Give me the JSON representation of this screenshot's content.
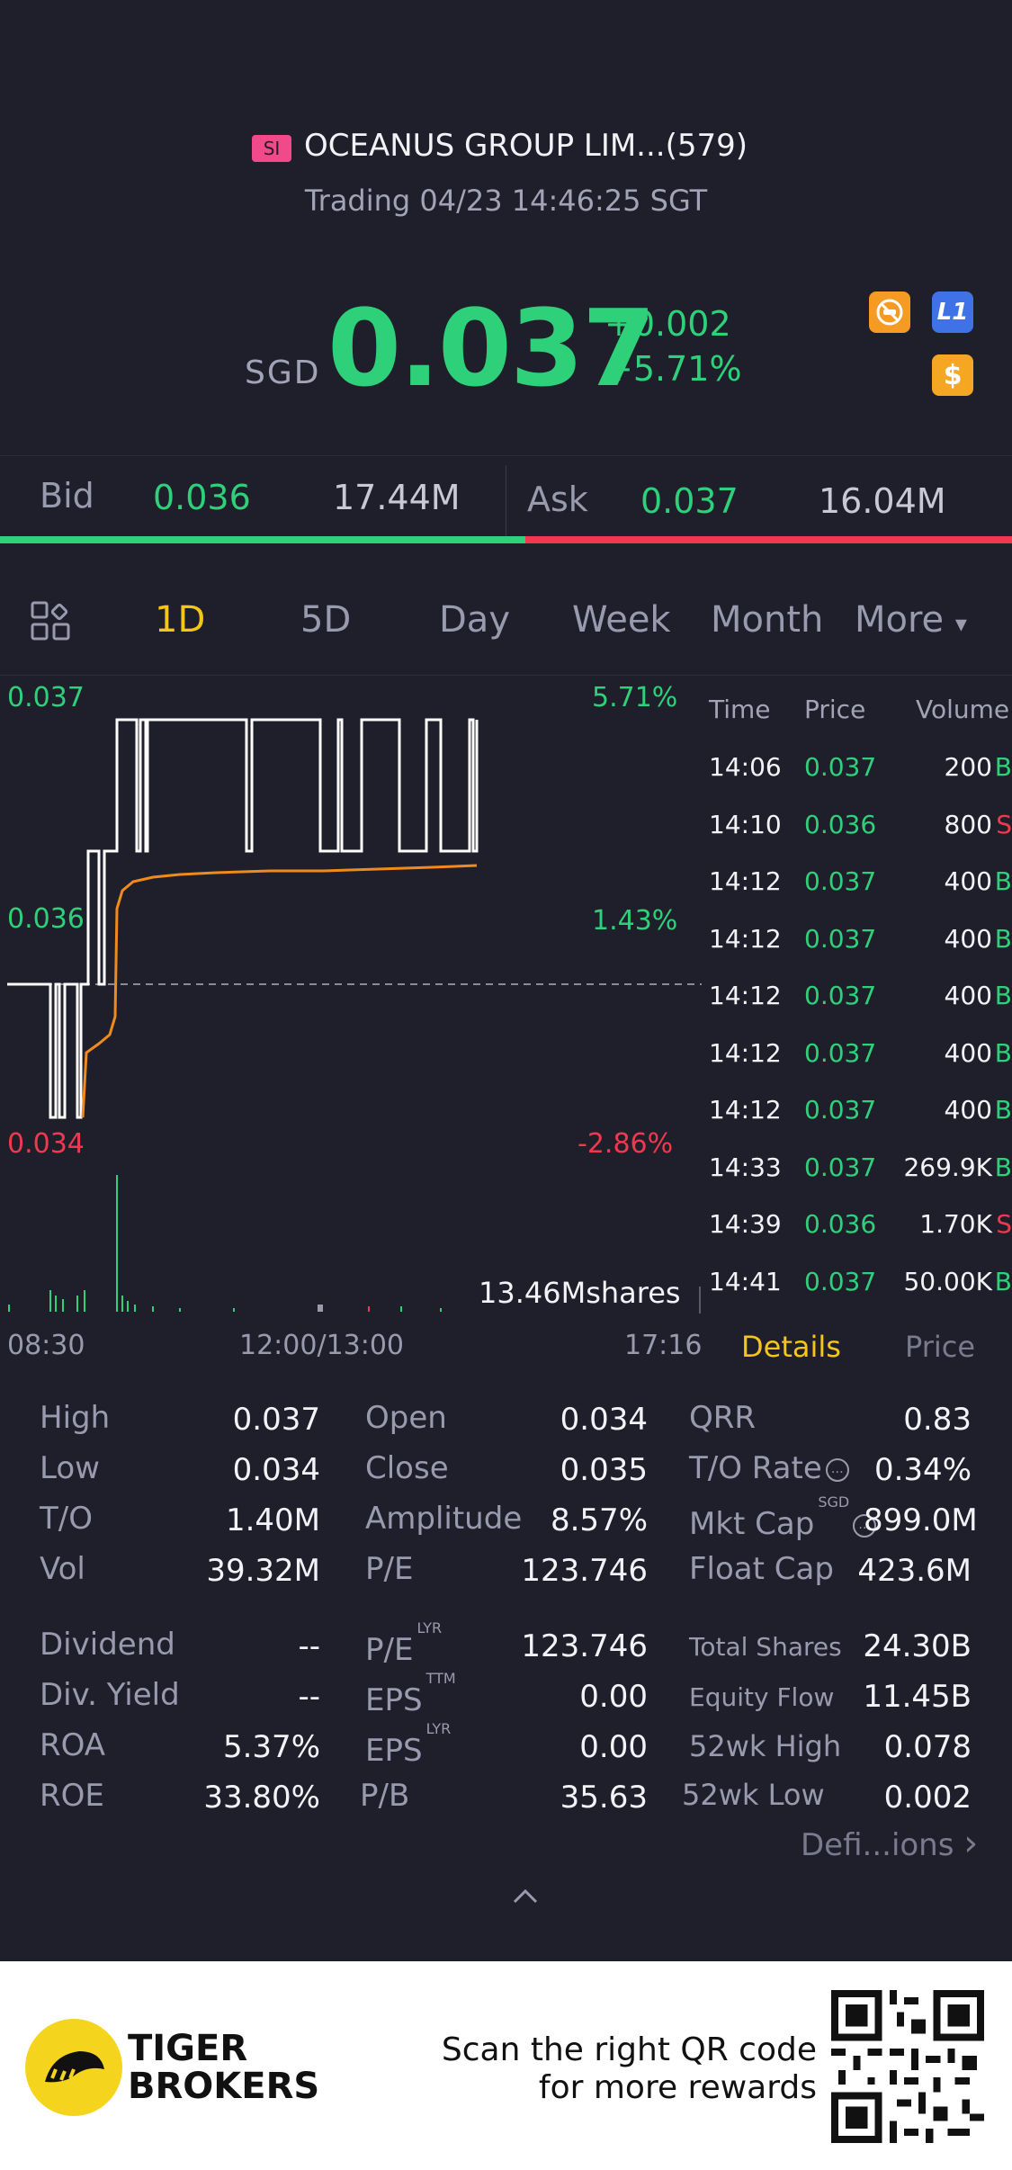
{
  "header": {
    "market_badge": "SI",
    "stock_name": "OCEANUS GROUP LIM...(579)",
    "trading_status": "Trading 04/23 14:46:25 SGT",
    "currency": "SGD",
    "price": "0.037",
    "change": "+0.002",
    "change_pct": "+5.71%",
    "icons": [
      "no-short-icon",
      "level1-icon",
      "dollar-icon"
    ],
    "icon_glyphs": {
      "level1": "L1",
      "dollar": "$"
    }
  },
  "bid_ask": {
    "bid_label": "Bid",
    "bid_price": "0.036",
    "bid_size": "17.44M",
    "ask_label": "Ask",
    "ask_price": "0.037",
    "ask_size": "16.04M"
  },
  "tabs": {
    "items": [
      "1D",
      "5D",
      "Day",
      "Week",
      "Month",
      "More"
    ],
    "active": "1D",
    "more_caret": "▾"
  },
  "chart": {
    "y_high": "0.037",
    "y_mid": "0.036",
    "y_low": "0.034",
    "pct_high": "5.71%",
    "pct_mid": "1.43%",
    "pct_low": "-2.86%",
    "volume_label": "13.46Mshares",
    "x_labels": [
      "08:30",
      "12:00/13:00",
      "17:16"
    ]
  },
  "trades": {
    "headers": [
      "Time",
      "Price",
      "Volume"
    ],
    "rows": [
      {
        "time": "14:06",
        "price": "0.037",
        "volume": "200",
        "side": "B"
      },
      {
        "time": "14:10",
        "price": "0.036",
        "volume": "800",
        "side": "S"
      },
      {
        "time": "14:12",
        "price": "0.037",
        "volume": "400",
        "side": "B"
      },
      {
        "time": "14:12",
        "price": "0.037",
        "volume": "400",
        "side": "B"
      },
      {
        "time": "14:12",
        "price": "0.037",
        "volume": "400",
        "side": "B"
      },
      {
        "time": "14:12",
        "price": "0.037",
        "volume": "400",
        "side": "B"
      },
      {
        "time": "14:12",
        "price": "0.037",
        "volume": "400",
        "side": "B"
      },
      {
        "time": "14:33",
        "price": "0.037",
        "volume": "269.9K",
        "side": "B"
      },
      {
        "time": "14:39",
        "price": "0.036",
        "volume": "1.70K",
        "side": "S"
      },
      {
        "time": "14:41",
        "price": "0.037",
        "volume": "50.00K",
        "side": "B"
      }
    ],
    "tab_details": "Details",
    "tab_price": "Price"
  },
  "details": {
    "high_label": "High",
    "high": "0.037",
    "low_label": "Low",
    "low": "0.034",
    "to_label": "T/O",
    "to": "1.40M",
    "vol_label": "Vol",
    "vol": "39.32M",
    "open_label": "Open",
    "open": "0.034",
    "close_label": "Close",
    "close": "0.035",
    "amplitude_label": "Amplitude",
    "amplitude": "8.57%",
    "pe_label": "P/E",
    "pe": "123.746",
    "qrr_label": "QRR",
    "qrr": "0.83",
    "to_rate_label": "T/O Rate",
    "to_rate": "0.34%",
    "mkt_cap_label": "Mkt Cap",
    "mkt_cap_sup": "SGD",
    "mkt_cap": "899.0M",
    "float_cap_label": "Float Cap",
    "float_cap": "423.6M",
    "dividend_label": "Dividend",
    "dividend": "--",
    "div_yield_label": "Div. Yield",
    "div_yield": "--",
    "roa_label": "ROA",
    "roa": "5.37%",
    "roe_label": "ROE",
    "roe": "33.80%",
    "pe_lyr_label": "P/E",
    "pe_lyr_sup": "LYR",
    "pe_lyr": "123.746",
    "eps_ttm_label": "EPS",
    "eps_ttm_sup": "TTM",
    "eps_ttm": "0.00",
    "eps_lyr_label": "EPS",
    "eps_lyr_sup": "LYR",
    "eps_lyr": "0.00",
    "pb_label": "P/B",
    "pb": "35.63",
    "total_shares_label": "Total Shares",
    "total_shares": "24.30B",
    "equity_flow_label": "Equity Flow",
    "equity_flow": "11.45B",
    "wk52_high_label": "52wk High",
    "wk52_high": "0.078",
    "wk52_low_label": "52wk Low",
    "wk52_low": "0.002",
    "definitions_link": "Defi...ions",
    "chevron": "›",
    "collapse": "^"
  },
  "footer": {
    "brand_line1": "TIGER",
    "brand_line2": "BROKERS",
    "scan_line1": "Scan the right QR code",
    "scan_line2": "for more rewards"
  },
  "colors": {
    "background": "#1f1f2b",
    "up": "#2fd07a",
    "down": "#f0384e",
    "active_tab": "#f5c518",
    "avg_line": "#f08a1c"
  }
}
